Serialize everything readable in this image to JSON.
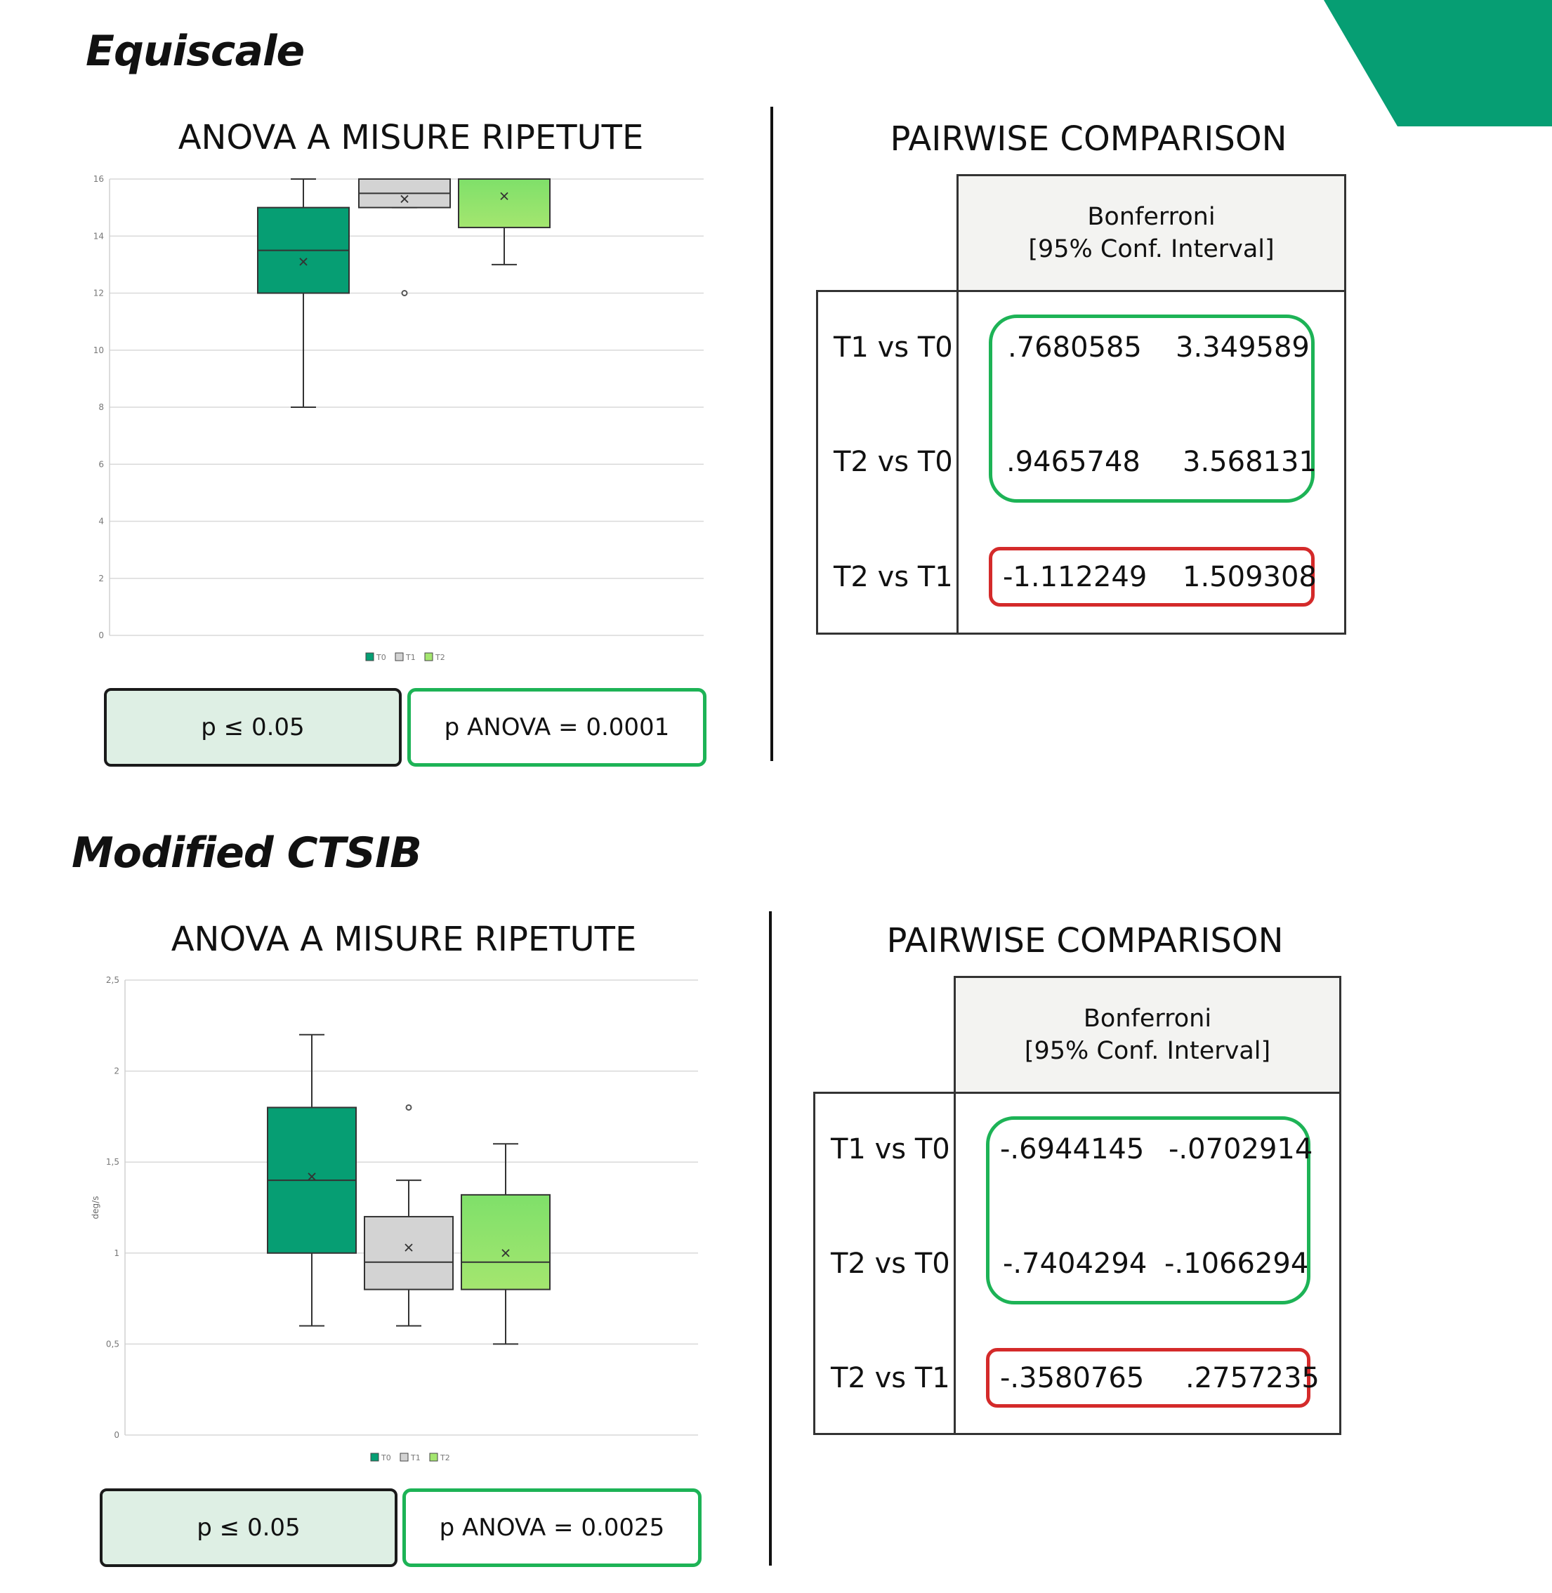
{
  "colors": {
    "brand": "#069e73",
    "t0": "#069e73",
    "t1": "#d3d3d3",
    "t2_top": "#7fe06a",
    "t2_bottom": "#a4e66f",
    "significant": "#1db356",
    "not_significant": "#d42a2a",
    "sig_box_fill": "#deefe4"
  },
  "sections": [
    {
      "title": "Equiscale",
      "anova": {
        "title": "ANOVA A MISURE RIPETUTE",
        "p_threshold": "p ≤ 0.05",
        "p_value": "p ANOVA = 0.0001"
      },
      "pairwise": {
        "title": "PAIRWISE COMPARISON",
        "header_line1": "Bonferroni",
        "header_line2": "[95% Conf. Interval]",
        "rows": [
          {
            "label": "T1 vs T0",
            "low": ".7680585",
            "high": "3.349589",
            "significant": true
          },
          {
            "label": "T2 vs T0",
            "low": ".9465748",
            "high": "3.568131",
            "significant": true
          },
          {
            "label": "T2 vs T1",
            "low": "-1.112249",
            "high": "1.509308",
            "significant": false
          }
        ]
      }
    },
    {
      "title": "Modified CTSIB",
      "anova": {
        "title": "ANOVA A MISURE RIPETUTE",
        "p_threshold": "p ≤ 0.05",
        "p_value": "p ANOVA = 0.0025"
      },
      "pairwise": {
        "title": "PAIRWISE COMPARISON",
        "header_line1": "Bonferroni",
        "header_line2": "[95% Conf. Interval]",
        "rows": [
          {
            "label": "T1 vs T0",
            "low": "-.6944145",
            "high": "-.0702914",
            "significant": true
          },
          {
            "label": "T2 vs T0",
            "low": "-.7404294",
            "high": "-.1066294",
            "significant": true
          },
          {
            "label": "T2 vs T1",
            "low": "-.3580765",
            "high": ".2757235",
            "significant": false
          }
        ]
      }
    }
  ],
  "chart_data": [
    {
      "type": "box",
      "title": "",
      "xlabel": "",
      "ylabel": "",
      "ylim": [
        0,
        16
      ],
      "yticks": [
        "0",
        "2",
        "4",
        "6",
        "8",
        "10",
        "12",
        "14",
        "16"
      ],
      "ytick_values": [
        0,
        2,
        4,
        6,
        8,
        10,
        12,
        14,
        16
      ],
      "grid": true,
      "legend": "bottom-center",
      "series": [
        {
          "name": "T0",
          "whisker_low": 8,
          "q1": 12,
          "median": 13.5,
          "q3": 15,
          "whisker_high": 16,
          "mean": 13.1,
          "outliers": []
        },
        {
          "name": "T1",
          "whisker_low": 15,
          "q1": 15,
          "median": 15.5,
          "q3": 16,
          "whisker_high": 16,
          "mean": 15.3,
          "outliers": [
            12
          ]
        },
        {
          "name": "T2",
          "whisker_low": 13,
          "q1": 14.3,
          "median": 16,
          "q3": 16,
          "whisker_high": 16,
          "mean": 15.4,
          "outliers": []
        }
      ]
    },
    {
      "type": "box",
      "title": "",
      "xlabel": "",
      "ylabel": "deg/s",
      "ylim": [
        0,
        2.5
      ],
      "yticks": [
        "0",
        "0,5",
        "1",
        "1,5",
        "2",
        "2,5"
      ],
      "ytick_values": [
        0,
        0.5,
        1,
        1.5,
        2,
        2.5
      ],
      "grid": true,
      "legend": "bottom-center",
      "series": [
        {
          "name": "T0",
          "whisker_low": 0.6,
          "q1": 1.0,
          "median": 1.4,
          "q3": 1.8,
          "whisker_high": 2.2,
          "mean": 1.42,
          "outliers": []
        },
        {
          "name": "T1",
          "whisker_low": 0.6,
          "q1": 0.8,
          "median": 0.95,
          "q3": 1.2,
          "whisker_high": 1.4,
          "mean": 1.03,
          "outliers": [
            1.8
          ]
        },
        {
          "name": "T2",
          "whisker_low": 0.5,
          "q1": 0.8,
          "median": 0.95,
          "q3": 1.32,
          "whisker_high": 1.6,
          "mean": 1.0,
          "outliers": []
        }
      ]
    }
  ]
}
